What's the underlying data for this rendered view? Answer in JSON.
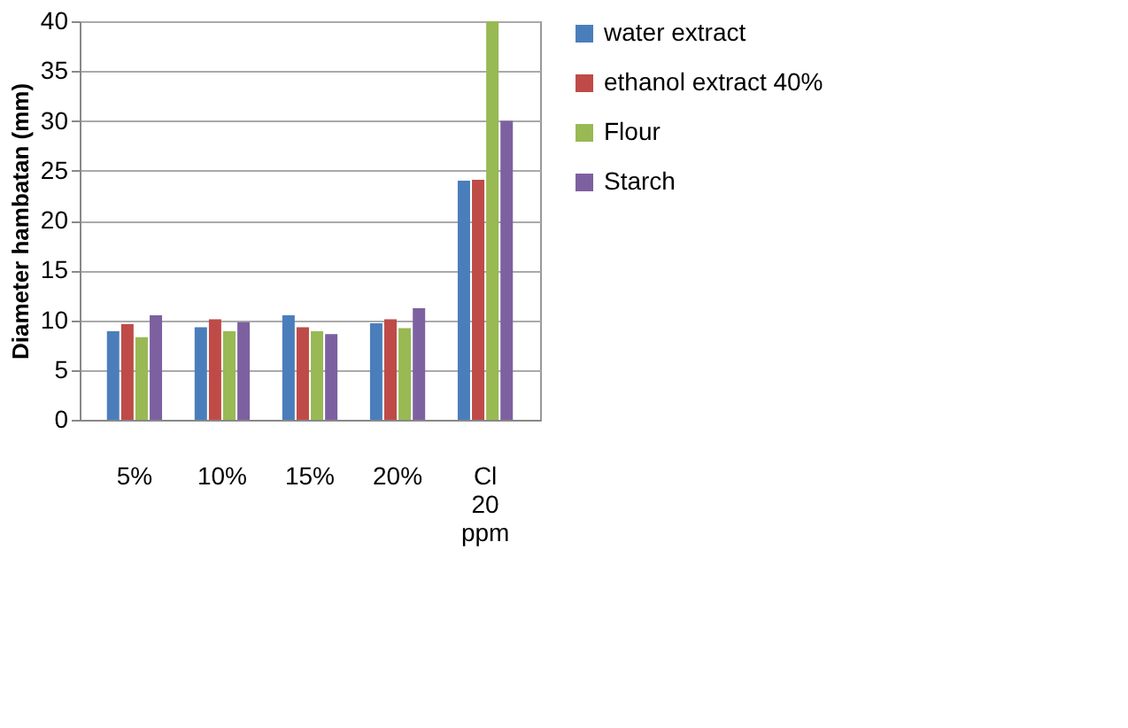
{
  "chart_data": {
    "type": "bar",
    "ylabel": "Diameter hambatan  (mm)",
    "categories": [
      "5%",
      "10%",
      "15%",
      "20%",
      "Cl 20 ppm"
    ],
    "series": [
      {
        "name": "water extract",
        "color": "#4a7ebb",
        "values": [
          8.9,
          9.3,
          10.5,
          9.7,
          24.0
        ]
      },
      {
        "name": "ethanol extract 40%",
        "color": "#be4b48",
        "values": [
          9.6,
          10.1,
          9.3,
          10.1,
          24.1
        ]
      },
      {
        "name": "Flour",
        "color": "#98b954",
        "values": [
          8.3,
          8.9,
          8.9,
          9.2,
          40
        ]
      },
      {
        "name": "Starch",
        "color": "#7d60a0",
        "values": [
          10.5,
          9.8,
          8.6,
          11.2,
          30
        ]
      }
    ],
    "ylim": [
      0,
      40
    ],
    "yticks": [
      0,
      5,
      10,
      15,
      20,
      25,
      30,
      35,
      40
    ],
    "grid": "y",
    "legend": "right"
  }
}
